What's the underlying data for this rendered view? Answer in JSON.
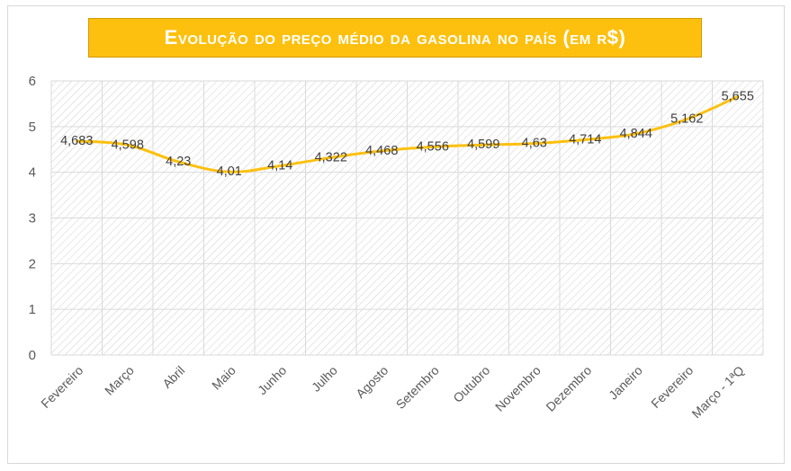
{
  "chart_data": {
    "type": "line",
    "title": "Evolução do preço médio da gasolina no país (em R$)",
    "xlabel": "",
    "ylabel": "",
    "ylim": [
      0,
      6
    ],
    "yticks": [
      "0",
      "1",
      "2",
      "3",
      "4",
      "5",
      "6"
    ],
    "categories": [
      "Fevereiro",
      "Março",
      "Abril",
      "Maio",
      "Junho",
      "Julho",
      "Agosto",
      "Setembro",
      "Outubro",
      "Novembro",
      "Dezembro",
      "Janeiro",
      "Fevereiro",
      "Março - 1ªQ"
    ],
    "values": [
      4.683,
      4.598,
      4.23,
      4.01,
      4.14,
      4.322,
      4.468,
      4.556,
      4.599,
      4.63,
      4.714,
      4.844,
      5.162,
      5.655
    ],
    "value_labels": [
      "4,683",
      "4,598",
      "4,23",
      "4,01",
      "4,14",
      "4,322",
      "4,468",
      "4,556",
      "4,599",
      "4,63",
      "4,714",
      "4,844",
      "5,162",
      "5,655"
    ],
    "grid": true,
    "legend": "none",
    "colors": {
      "line": "#fdc00f",
      "title_bg": "#fdc00f",
      "title_text": "#ffffff",
      "grid": "#d9d9d9",
      "hatch": "#d0d0d0"
    }
  }
}
